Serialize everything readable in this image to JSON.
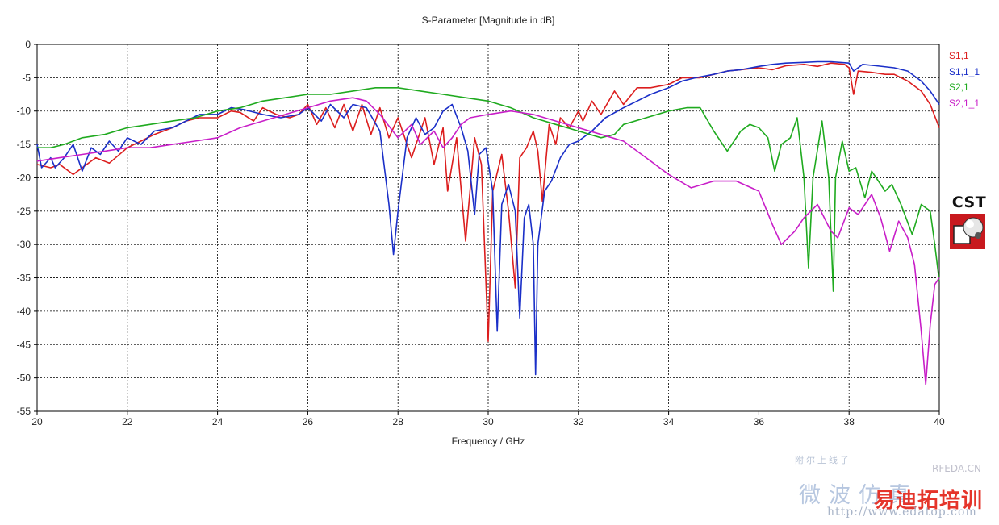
{
  "chart_data": {
    "type": "line",
    "title": "S-Parameter [Magnitude in dB]",
    "xlabel": "Frequency / GHz",
    "ylabel": "",
    "xlim": [
      20,
      40
    ],
    "ylim": [
      -55,
      0
    ],
    "x_ticks": [
      "20",
      "22",
      "24",
      "26",
      "28",
      "30",
      "32",
      "34",
      "36",
      "38",
      "40"
    ],
    "y_ticks": [
      "0",
      "-5",
      "-10",
      "-15",
      "-20",
      "-25",
      "-30",
      "-35",
      "-40",
      "-45",
      "-50",
      "-55"
    ],
    "grid": true,
    "legend_position": "right",
    "series": [
      {
        "name": "S1,1",
        "color": "#dc1e1e",
        "points": [
          [
            20.0,
            -18.0
          ],
          [
            20.3,
            -18.5
          ],
          [
            20.5,
            -18.0
          ],
          [
            20.8,
            -19.5
          ],
          [
            21.0,
            -18.5
          ],
          [
            21.3,
            -17.0
          ],
          [
            21.6,
            -17.8
          ],
          [
            22.0,
            -15.5
          ],
          [
            22.3,
            -14.5
          ],
          [
            22.6,
            -13.5
          ],
          [
            23.0,
            -12.5
          ],
          [
            23.3,
            -11.5
          ],
          [
            23.6,
            -11.0
          ],
          [
            24.0,
            -11.0
          ],
          [
            24.3,
            -10.0
          ],
          [
            24.5,
            -10.2
          ],
          [
            24.8,
            -11.5
          ],
          [
            25.0,
            -9.5
          ],
          [
            25.3,
            -10.5
          ],
          [
            25.6,
            -11.0
          ],
          [
            25.8,
            -10.5
          ],
          [
            26.0,
            -9.0
          ],
          [
            26.2,
            -12.0
          ],
          [
            26.4,
            -9.5
          ],
          [
            26.6,
            -12.5
          ],
          [
            26.8,
            -9.0
          ],
          [
            27.0,
            -13.0
          ],
          [
            27.2,
            -9.0
          ],
          [
            27.4,
            -13.5
          ],
          [
            27.6,
            -9.5
          ],
          [
            27.8,
            -14.0
          ],
          [
            28.0,
            -11.0
          ],
          [
            28.3,
            -17.0
          ],
          [
            28.6,
            -11.0
          ],
          [
            28.8,
            -18.0
          ],
          [
            29.0,
            -12.5
          ],
          [
            29.1,
            -22.0
          ],
          [
            29.3,
            -14.0
          ],
          [
            29.5,
            -29.5
          ],
          [
            29.7,
            -14.0
          ],
          [
            29.85,
            -18.0
          ],
          [
            30.0,
            -44.5
          ],
          [
            30.1,
            -22.0
          ],
          [
            30.3,
            -16.5
          ],
          [
            30.45,
            -25.0
          ],
          [
            30.6,
            -36.5
          ],
          [
            30.7,
            -17.0
          ],
          [
            30.85,
            -15.5
          ],
          [
            31.0,
            -13.0
          ],
          [
            31.1,
            -16.0
          ],
          [
            31.2,
            -23.5
          ],
          [
            31.35,
            -12.0
          ],
          [
            31.5,
            -15.0
          ],
          [
            31.6,
            -11.0
          ],
          [
            31.8,
            -12.5
          ],
          [
            32.0,
            -10.0
          ],
          [
            32.1,
            -11.5
          ],
          [
            32.3,
            -8.5
          ],
          [
            32.5,
            -10.5
          ],
          [
            32.8,
            -7.0
          ],
          [
            33.0,
            -9.0
          ],
          [
            33.3,
            -6.5
          ],
          [
            33.6,
            -6.5
          ],
          [
            34.0,
            -6.0
          ],
          [
            34.3,
            -5.0
          ],
          [
            34.7,
            -5.0
          ],
          [
            35.0,
            -4.5
          ],
          [
            35.3,
            -4.0
          ],
          [
            35.6,
            -3.8
          ],
          [
            36.0,
            -3.5
          ],
          [
            36.3,
            -3.8
          ],
          [
            36.6,
            -3.2
          ],
          [
            37.0,
            -3.0
          ],
          [
            37.3,
            -3.3
          ],
          [
            37.6,
            -2.8
          ],
          [
            37.9,
            -3.0
          ],
          [
            38.0,
            -3.5
          ],
          [
            38.1,
            -7.5
          ],
          [
            38.2,
            -4.0
          ],
          [
            38.5,
            -4.2
          ],
          [
            38.8,
            -4.5
          ],
          [
            39.0,
            -4.5
          ],
          [
            39.3,
            -5.5
          ],
          [
            39.6,
            -7.0
          ],
          [
            39.8,
            -9.0
          ],
          [
            40.0,
            -12.5
          ]
        ]
      },
      {
        "name": "S1,1_1",
        "color": "#1a2fc8",
        "points": [
          [
            20.0,
            -15.0
          ],
          [
            20.1,
            -18.5
          ],
          [
            20.3,
            -17.0
          ],
          [
            20.4,
            -18.5
          ],
          [
            20.6,
            -17.0
          ],
          [
            20.8,
            -15.0
          ],
          [
            21.0,
            -19.0
          ],
          [
            21.2,
            -15.5
          ],
          [
            21.4,
            -16.5
          ],
          [
            21.6,
            -14.5
          ],
          [
            21.8,
            -16.0
          ],
          [
            22.0,
            -14.0
          ],
          [
            22.3,
            -15.0
          ],
          [
            22.6,
            -13.0
          ],
          [
            23.0,
            -12.5
          ],
          [
            23.3,
            -11.5
          ],
          [
            23.6,
            -10.5
          ],
          [
            24.0,
            -10.5
          ],
          [
            24.3,
            -9.5
          ],
          [
            24.6,
            -9.8
          ],
          [
            25.0,
            -10.5
          ],
          [
            25.4,
            -11.0
          ],
          [
            25.8,
            -10.5
          ],
          [
            26.0,
            -9.5
          ],
          [
            26.3,
            -11.5
          ],
          [
            26.5,
            -9.0
          ],
          [
            26.8,
            -11.0
          ],
          [
            27.0,
            -9.0
          ],
          [
            27.3,
            -9.5
          ],
          [
            27.6,
            -13.0
          ],
          [
            27.8,
            -24.0
          ],
          [
            27.9,
            -31.5
          ],
          [
            28.0,
            -25.0
          ],
          [
            28.2,
            -14.0
          ],
          [
            28.4,
            -11.0
          ],
          [
            28.6,
            -13.5
          ],
          [
            28.8,
            -12.5
          ],
          [
            29.0,
            -10.0
          ],
          [
            29.2,
            -9.0
          ],
          [
            29.4,
            -12.5
          ],
          [
            29.55,
            -16.0
          ],
          [
            29.7,
            -25.5
          ],
          [
            29.8,
            -16.5
          ],
          [
            29.95,
            -15.5
          ],
          [
            30.1,
            -22.0
          ],
          [
            30.2,
            -43.0
          ],
          [
            30.3,
            -24.0
          ],
          [
            30.45,
            -21.0
          ],
          [
            30.6,
            -25.0
          ],
          [
            30.7,
            -41.0
          ],
          [
            30.8,
            -26.0
          ],
          [
            30.9,
            -24.0
          ],
          [
            31.0,
            -30.0
          ],
          [
            31.05,
            -49.5
          ],
          [
            31.1,
            -30.0
          ],
          [
            31.25,
            -22.0
          ],
          [
            31.4,
            -20.5
          ],
          [
            31.6,
            -17.0
          ],
          [
            31.8,
            -15.0
          ],
          [
            32.0,
            -14.5
          ],
          [
            32.3,
            -13.0
          ],
          [
            32.6,
            -11.0
          ],
          [
            33.0,
            -9.5
          ],
          [
            33.3,
            -8.5
          ],
          [
            33.6,
            -7.5
          ],
          [
            34.0,
            -6.5
          ],
          [
            34.3,
            -5.5
          ],
          [
            34.6,
            -5.0
          ],
          [
            35.0,
            -4.5
          ],
          [
            35.3,
            -4.0
          ],
          [
            35.6,
            -3.8
          ],
          [
            36.0,
            -3.3
          ],
          [
            36.3,
            -3.0
          ],
          [
            36.6,
            -2.8
          ],
          [
            37.0,
            -2.7
          ],
          [
            37.3,
            -2.6
          ],
          [
            37.6,
            -2.6
          ],
          [
            38.0,
            -2.8
          ],
          [
            38.1,
            -4.0
          ],
          [
            38.3,
            -3.0
          ],
          [
            38.6,
            -3.2
          ],
          [
            39.0,
            -3.5
          ],
          [
            39.3,
            -4.0
          ],
          [
            39.6,
            -5.5
          ],
          [
            39.8,
            -7.0
          ],
          [
            40.0,
            -9.0
          ]
        ]
      },
      {
        "name": "S2,1",
        "color": "#1faa1f",
        "points": [
          [
            20.0,
            -15.5
          ],
          [
            20.3,
            -15.5
          ],
          [
            20.6,
            -15.0
          ],
          [
            21.0,
            -14.0
          ],
          [
            21.5,
            -13.5
          ],
          [
            22.0,
            -12.5
          ],
          [
            22.5,
            -12.0
          ],
          [
            23.0,
            -11.5
          ],
          [
            23.5,
            -11.0
          ],
          [
            24.0,
            -10.0
          ],
          [
            24.5,
            -9.5
          ],
          [
            25.0,
            -8.5
          ],
          [
            25.5,
            -8.0
          ],
          [
            26.0,
            -7.5
          ],
          [
            26.5,
            -7.5
          ],
          [
            27.0,
            -7.0
          ],
          [
            27.5,
            -6.5
          ],
          [
            28.0,
            -6.5
          ],
          [
            28.5,
            -7.0
          ],
          [
            29.0,
            -7.5
          ],
          [
            29.5,
            -8.0
          ],
          [
            30.0,
            -8.5
          ],
          [
            30.5,
            -9.5
          ],
          [
            31.0,
            -11.0
          ],
          [
            31.5,
            -12.0
          ],
          [
            32.0,
            -13.0
          ],
          [
            32.5,
            -14.0
          ],
          [
            32.8,
            -13.5
          ],
          [
            33.0,
            -12.0
          ],
          [
            33.5,
            -11.0
          ],
          [
            34.0,
            -10.0
          ],
          [
            34.4,
            -9.5
          ],
          [
            34.7,
            -9.5
          ],
          [
            35.0,
            -13.0
          ],
          [
            35.3,
            -16.0
          ],
          [
            35.6,
            -13.0
          ],
          [
            35.8,
            -12.0
          ],
          [
            36.0,
            -12.5
          ],
          [
            36.2,
            -14.0
          ],
          [
            36.35,
            -19.0
          ],
          [
            36.5,
            -15.0
          ],
          [
            36.7,
            -14.0
          ],
          [
            36.85,
            -11.0
          ],
          [
            37.0,
            -20.0
          ],
          [
            37.1,
            -33.5
          ],
          [
            37.2,
            -20.0
          ],
          [
            37.4,
            -11.5
          ],
          [
            37.55,
            -20.0
          ],
          [
            37.65,
            -37.0
          ],
          [
            37.7,
            -20.0
          ],
          [
            37.85,
            -14.5
          ],
          [
            38.0,
            -19.0
          ],
          [
            38.15,
            -18.5
          ],
          [
            38.35,
            -23.0
          ],
          [
            38.5,
            -19.0
          ],
          [
            38.8,
            -22.0
          ],
          [
            38.95,
            -21.0
          ],
          [
            39.15,
            -24.0
          ],
          [
            39.4,
            -28.5
          ],
          [
            39.6,
            -24.0
          ],
          [
            39.8,
            -25.0
          ],
          [
            39.9,
            -30.0
          ],
          [
            40.0,
            -35.5
          ]
        ]
      },
      {
        "name": "S2,1_1",
        "color": "#c81ec8",
        "points": [
          [
            20.0,
            -17.5
          ],
          [
            20.5,
            -17.0
          ],
          [
            21.0,
            -16.5
          ],
          [
            21.5,
            -16.0
          ],
          [
            22.0,
            -15.5
          ],
          [
            22.5,
            -15.5
          ],
          [
            23.0,
            -15.0
          ],
          [
            23.5,
            -14.5
          ],
          [
            24.0,
            -14.0
          ],
          [
            24.5,
            -12.5
          ],
          [
            25.0,
            -11.5
          ],
          [
            25.5,
            -10.5
          ],
          [
            26.0,
            -9.5
          ],
          [
            26.5,
            -8.5
          ],
          [
            27.0,
            -8.0
          ],
          [
            27.3,
            -8.5
          ],
          [
            27.6,
            -10.5
          ],
          [
            28.0,
            -14.0
          ],
          [
            28.3,
            -12.0
          ],
          [
            28.5,
            -15.0
          ],
          [
            28.8,
            -13.0
          ],
          [
            29.0,
            -15.5
          ],
          [
            29.2,
            -14.0
          ],
          [
            29.4,
            -12.0
          ],
          [
            29.6,
            -11.0
          ],
          [
            30.0,
            -10.5
          ],
          [
            30.5,
            -10.0
          ],
          [
            31.0,
            -10.5
          ],
          [
            31.5,
            -11.5
          ],
          [
            32.0,
            -12.5
          ],
          [
            32.5,
            -13.5
          ],
          [
            33.0,
            -14.5
          ],
          [
            33.5,
            -17.0
          ],
          [
            34.0,
            -19.5
          ],
          [
            34.5,
            -21.5
          ],
          [
            35.0,
            -20.5
          ],
          [
            35.5,
            -20.5
          ],
          [
            36.0,
            -22.0
          ],
          [
            36.3,
            -27.0
          ],
          [
            36.5,
            -30.0
          ],
          [
            36.8,
            -28.0
          ],
          [
            37.0,
            -26.0
          ],
          [
            37.3,
            -24.0
          ],
          [
            37.6,
            -28.0
          ],
          [
            37.75,
            -29.0
          ],
          [
            38.0,
            -24.5
          ],
          [
            38.2,
            -25.5
          ],
          [
            38.5,
            -22.5
          ],
          [
            38.7,
            -26.0
          ],
          [
            38.9,
            -31.0
          ],
          [
            39.1,
            -26.5
          ],
          [
            39.3,
            -29.0
          ],
          [
            39.45,
            -33.0
          ],
          [
            39.6,
            -43.0
          ],
          [
            39.7,
            -51.0
          ],
          [
            39.8,
            -42.0
          ],
          [
            39.9,
            -36.0
          ],
          [
            40.0,
            -35.0
          ]
        ]
      }
    ]
  },
  "logo": {
    "text": "CST"
  },
  "watermark": {
    "small": "附尔上线子",
    "site": "RFEDA.CN",
    "cn": "微波仿真",
    "brand": "易迪拓培训",
    "url": "http://www.edatop.com"
  }
}
